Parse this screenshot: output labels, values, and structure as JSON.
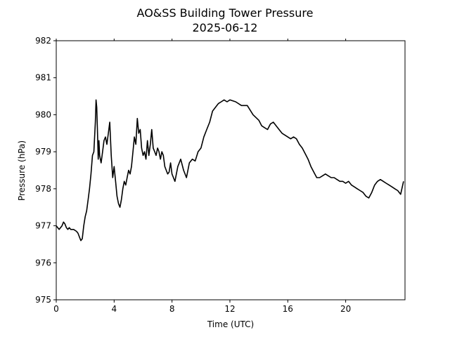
{
  "chart_data": {
    "type": "line",
    "title": "AO&SS Building Tower Pressure",
    "subtitle": "2025-06-12",
    "xlabel": "Time (UTC)",
    "ylabel": "Pressure (hPa)",
    "xlim": [
      0,
      24.1
    ],
    "ylim": [
      975,
      982
    ],
    "xticks": [
      0,
      4,
      8,
      12,
      16,
      20
    ],
    "yticks": [
      975,
      976,
      977,
      978,
      979,
      980,
      981,
      982
    ],
    "grid": false,
    "line_color": "#000000",
    "series": [
      {
        "x": [
          0,
          0.2,
          0.4,
          0.5,
          0.6,
          0.7,
          0.8,
          0.9,
          1.0,
          1.2,
          1.4,
          1.5,
          1.6,
          1.7,
          1.8,
          1.9,
          2.0,
          2.1,
          2.2,
          2.3,
          2.4,
          2.5,
          2.6,
          2.7,
          2.75,
          2.8,
          2.85,
          2.9,
          2.95,
          3.0,
          3.1,
          3.2,
          3.3,
          3.4,
          3.5,
          3.6,
          3.7,
          3.8,
          3.9,
          4.0,
          4.1,
          4.2,
          4.3,
          4.4,
          4.5,
          4.6,
          4.7,
          4.8,
          4.9,
          5.0,
          5.1,
          5.2,
          5.3,
          5.4,
          5.5,
          5.6,
          5.7,
          5.8,
          5.9,
          6.0,
          6.1,
          6.2,
          6.3,
          6.4,
          6.5,
          6.6,
          6.7,
          6.8,
          6.9,
          7.0,
          7.1,
          7.2,
          7.3,
          7.4,
          7.5,
          7.6,
          7.7,
          7.8,
          7.9,
          8.0,
          8.2,
          8.4,
          8.6,
          8.8,
          9.0,
          9.2,
          9.4,
          9.6,
          9.8,
          10.0,
          10.2,
          10.4,
          10.6,
          10.8,
          11.0,
          11.2,
          11.4,
          11.6,
          11.8,
          12.0,
          12.4,
          12.8,
          13.2,
          13.6,
          14.0,
          14.2,
          14.4,
          14.6,
          14.8,
          15.0,
          15.2,
          15.4,
          15.6,
          15.8,
          16.0,
          16.2,
          16.4,
          16.6,
          16.8,
          17.0,
          17.2,
          17.4,
          17.6,
          17.8,
          18.0,
          18.2,
          18.4,
          18.6,
          18.8,
          19.0,
          19.2,
          19.4,
          19.6,
          19.8,
          20.0,
          20.2,
          20.4,
          20.6,
          20.8,
          21.0,
          21.2,
          21.4,
          21.6,
          21.8,
          22.0,
          22.2,
          22.4,
          22.6,
          22.8,
          23.0,
          23.2,
          23.4,
          23.6,
          23.8,
          24.0
        ],
        "y": [
          977.0,
          976.9,
          977.0,
          977.1,
          977.05,
          976.95,
          976.9,
          976.95,
          976.9,
          976.9,
          976.85,
          976.8,
          976.7,
          976.6,
          976.65,
          977.0,
          977.25,
          977.4,
          977.7,
          978.0,
          978.4,
          978.9,
          979.0,
          979.8,
          980.4,
          980.2,
          979.5,
          978.8,
          979.3,
          978.9,
          978.7,
          979.0,
          979.3,
          979.4,
          979.2,
          979.5,
          979.8,
          978.9,
          978.3,
          978.6,
          978.2,
          977.8,
          977.6,
          977.5,
          977.7,
          978.0,
          978.2,
          978.1,
          978.3,
          978.5,
          978.4,
          978.6,
          979.0,
          979.4,
          979.2,
          979.9,
          979.5,
          979.6,
          979.1,
          978.9,
          979.0,
          978.8,
          979.3,
          978.9,
          979.2,
          979.6,
          979.1,
          979.0,
          978.9,
          979.1,
          979.0,
          978.8,
          979.0,
          978.9,
          978.6,
          978.5,
          978.4,
          978.45,
          978.7,
          978.4,
          978.2,
          978.6,
          978.8,
          978.5,
          978.3,
          978.7,
          978.8,
          978.75,
          979.0,
          979.1,
          979.4,
          979.6,
          979.8,
          980.1,
          980.2,
          980.3,
          980.35,
          980.4,
          980.35,
          980.4,
          980.35,
          980.25,
          980.25,
          980.0,
          979.85,
          979.7,
          979.65,
          979.6,
          979.75,
          979.8,
          979.7,
          979.6,
          979.5,
          979.45,
          979.4,
          979.35,
          979.4,
          979.35,
          979.2,
          979.1,
          978.95,
          978.8,
          978.6,
          978.45,
          978.3,
          978.3,
          978.35,
          978.4,
          978.35,
          978.3,
          978.3,
          978.25,
          978.2,
          978.2,
          978.15,
          978.2,
          978.1,
          978.05,
          978.0,
          977.95,
          977.9,
          977.8,
          977.75,
          977.9,
          978.1,
          978.2,
          978.25,
          978.2,
          978.15,
          978.1,
          978.05,
          978.0,
          977.95,
          977.85,
          978.2
        ],
        "values_note": ""
      }
    ]
  }
}
